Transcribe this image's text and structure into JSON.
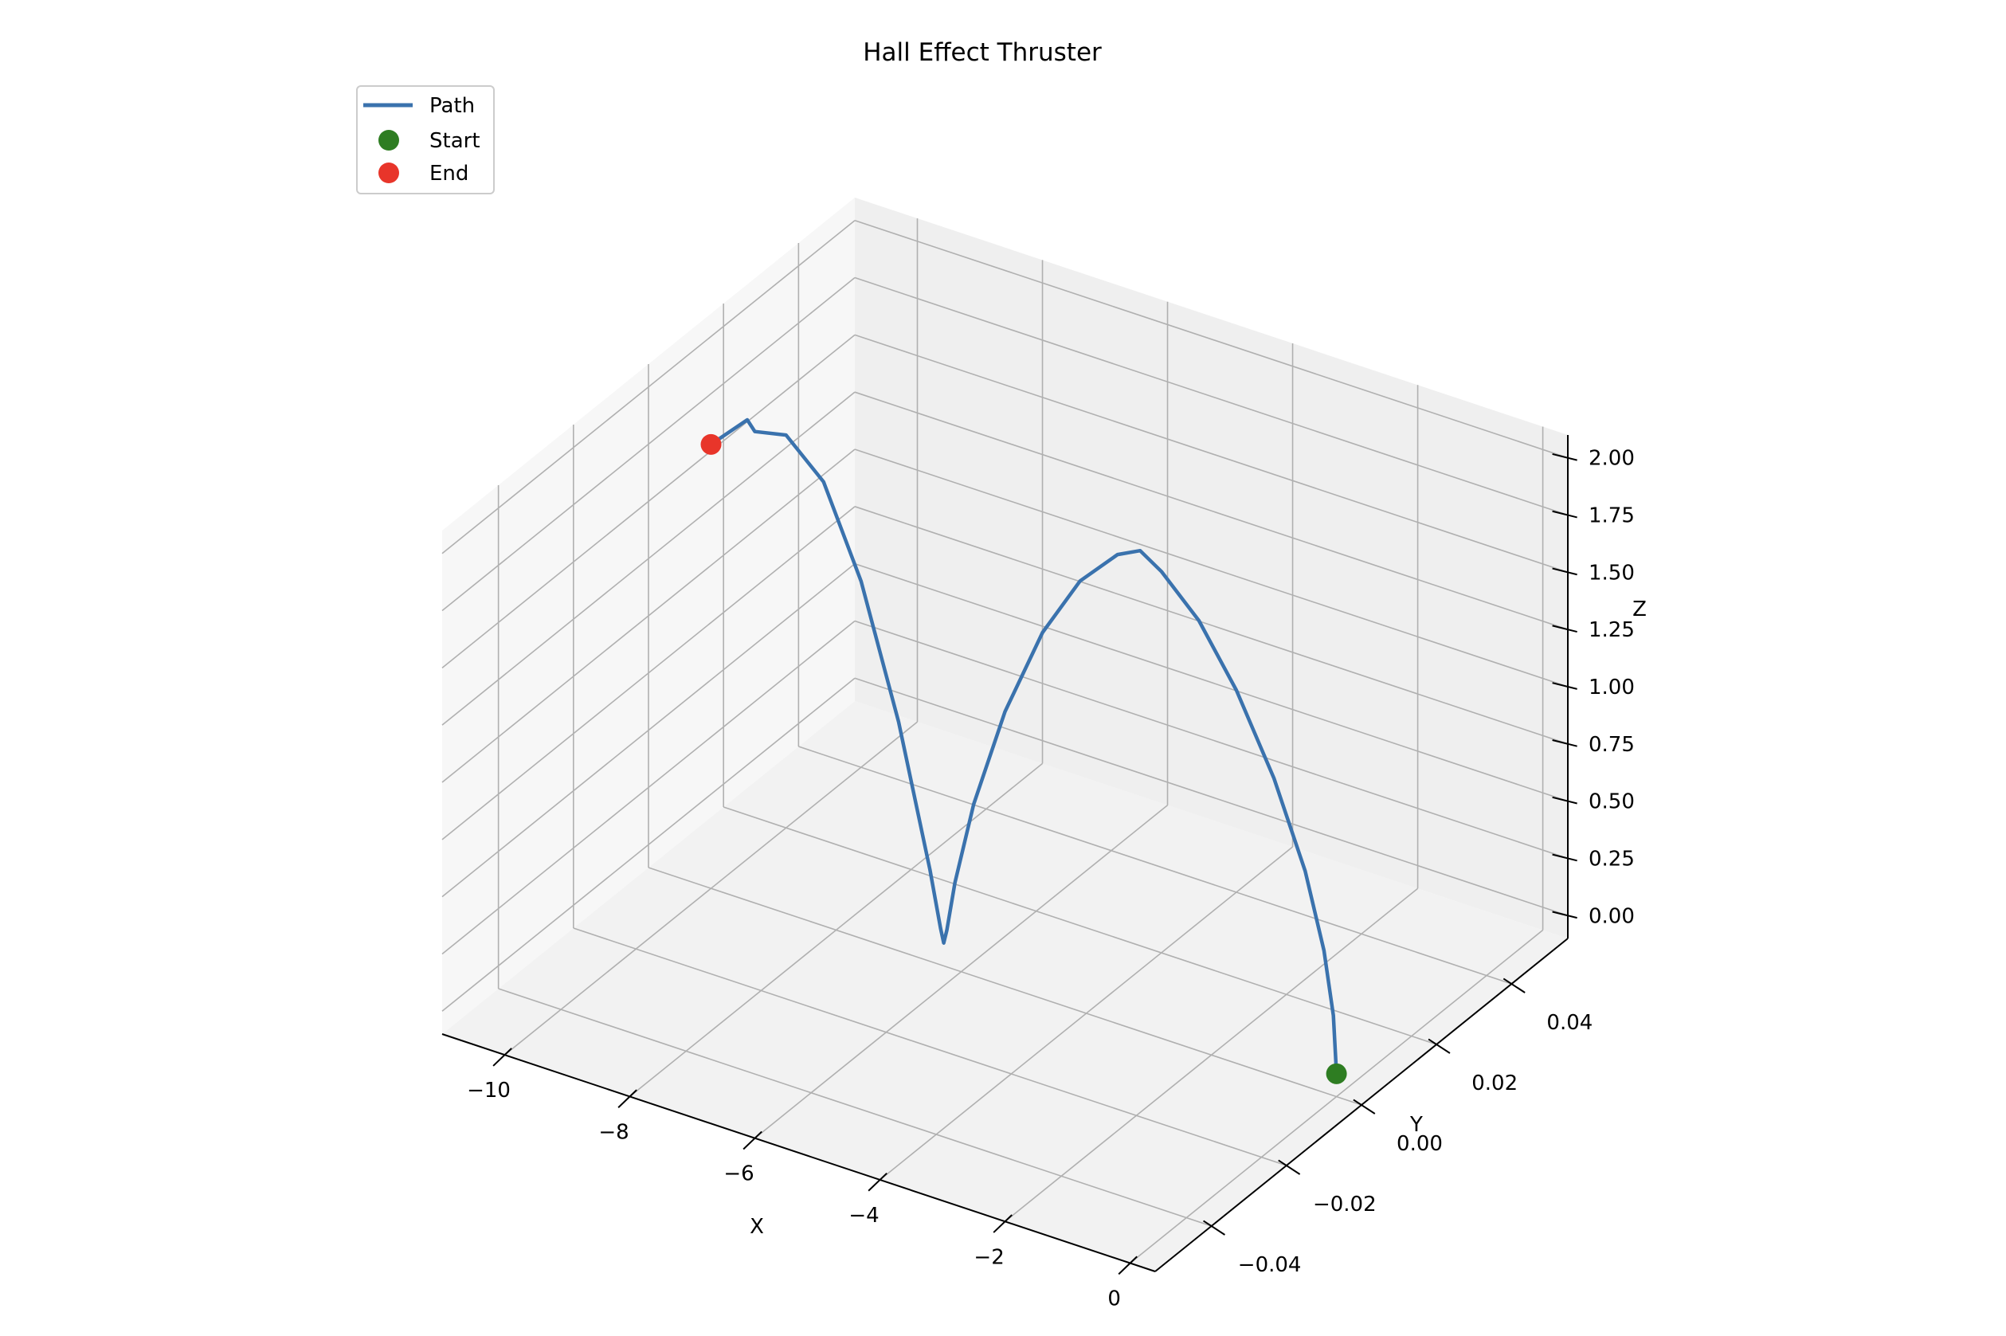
{
  "chart_data": {
    "type": "line3d",
    "title": "Hall Effect Thruster",
    "xlabel": "X",
    "ylabel": "Y",
    "zlabel": "Z",
    "xlim": [
      -11,
      0.4
    ],
    "ylim": [
      -0.055,
      0.055
    ],
    "zlim": [
      -0.1,
      2.1
    ],
    "x_ticks": [
      -10,
      -8,
      -6,
      -4,
      -2,
      0
    ],
    "x_tick_labels": [
      "−10",
      "−8",
      "−6",
      "−4",
      "−2",
      "0"
    ],
    "y_ticks": [
      -0.04,
      -0.02,
      0.0,
      0.02,
      0.04
    ],
    "y_tick_labels": [
      "−0.04",
      "−0.02",
      "0.00",
      "0.02",
      "0.04"
    ],
    "z_ticks": [
      0.0,
      0.25,
      0.5,
      0.75,
      1.0,
      1.25,
      1.5,
      1.75,
      2.0
    ],
    "z_tick_labels": [
      "0.00",
      "0.25",
      "0.50",
      "0.75",
      "1.00",
      "1.25",
      "1.50",
      "1.75",
      "2.00"
    ],
    "grid": true,
    "legend": {
      "position": "top-left",
      "entries": [
        {
          "label": "Path",
          "kind": "line",
          "color": "#3a72ad"
        },
        {
          "label": "Start",
          "kind": "marker",
          "color": "#2e7d22"
        },
        {
          "label": "End",
          "kind": "marker",
          "color": "#e8352a"
        }
      ]
    },
    "series": [
      {
        "name": "Path",
        "color": "#3a72ad",
        "description": "cycloid: two arches from start to end",
        "x": [
          0,
          -0.05,
          -0.2,
          -0.5,
          -1.0,
          -1.6,
          -2.2,
          -2.8,
          -3.14,
          -3.5,
          -4.1,
          -4.7,
          -5.3,
          -5.8,
          -6.1,
          -6.23,
          -6.28,
          -6.33,
          -6.5,
          -7.0,
          -7.6,
          -8.2,
          -8.8,
          -9.3,
          -9.42,
          -10.0
        ],
        "y": [
          0,
          0,
          0,
          0,
          0,
          0,
          0,
          0,
          0,
          0,
          0,
          0,
          0,
          0,
          0,
          0,
          0,
          0,
          0,
          0,
          0,
          0,
          0,
          0,
          0,
          0
        ],
        "z": [
          0,
          0.25,
          0.52,
          0.84,
          1.2,
          1.53,
          1.78,
          1.94,
          2.0,
          1.95,
          1.78,
          1.5,
          1.1,
          0.65,
          0.28,
          0.06,
          0,
          0.06,
          0.3,
          0.9,
          1.46,
          1.84,
          1.99,
          1.96,
          2.0,
          1.84
        ]
      }
    ],
    "markers": [
      {
        "name": "Start",
        "x": 0,
        "y": 0,
        "z": 0,
        "color": "#2e7d22"
      },
      {
        "name": "End",
        "x": -10.0,
        "y": 0,
        "z": 1.84,
        "color": "#e8352a"
      }
    ]
  }
}
